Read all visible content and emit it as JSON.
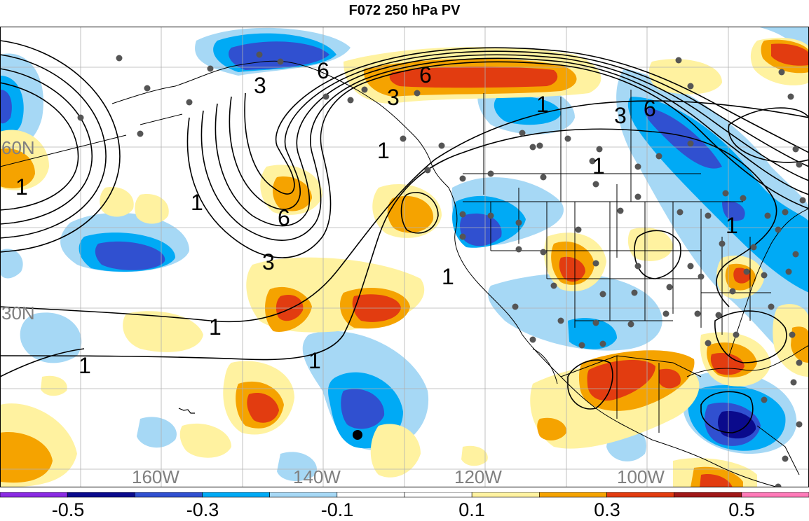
{
  "title": "F072 250 hPa PV",
  "map": {
    "lat_labels": [
      {
        "text": "60N",
        "lat": 60
      },
      {
        "text": "30N",
        "lat": 30
      }
    ],
    "lon_labels": [
      {
        "text": "160W",
        "lon": -160
      },
      {
        "text": "140W",
        "lon": -140
      },
      {
        "text": "120W",
        "lon": -120
      },
      {
        "text": "100W",
        "lon": -100
      }
    ],
    "contour_labels": [
      {
        "text": "3"
      },
      {
        "text": "6"
      },
      {
        "text": "6"
      },
      {
        "text": "3"
      },
      {
        "text": "1"
      },
      {
        "text": "3"
      },
      {
        "text": "6"
      },
      {
        "text": "1"
      },
      {
        "text": "1"
      },
      {
        "text": "6"
      },
      {
        "text": "3"
      },
      {
        "text": "1"
      },
      {
        "text": "1"
      },
      {
        "text": "1"
      },
      {
        "text": "1"
      },
      {
        "text": "1"
      }
    ]
  },
  "colorbar": {
    "colors": [
      "#8a2be2",
      "#0a0a8c",
      "#3050d0",
      "#00aaf5",
      "#a6d8f5",
      "#ffffff",
      "#ffffff",
      "#fff2a0",
      "#f5a300",
      "#e23c10",
      "#a01818",
      "#ff7ab8"
    ],
    "tick_labels": [
      "-0.5",
      "-0.3",
      "-0.1",
      "0.1",
      "0.3",
      "0.5"
    ]
  }
}
